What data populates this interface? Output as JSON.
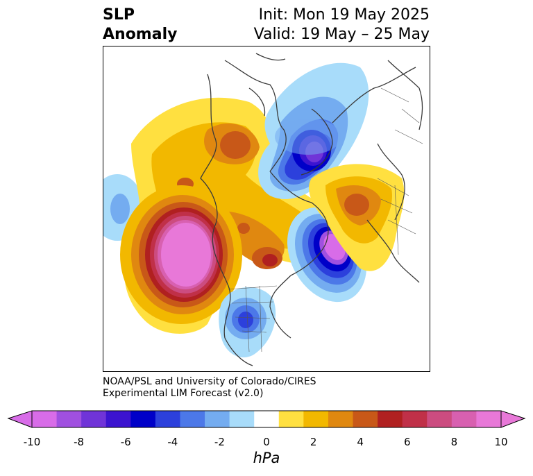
{
  "title": {
    "left_line1": "SLP",
    "left_line2": "Anomaly",
    "init": "Init: Mon 19 May 2025",
    "valid": "Valid: 19 May – 25 May"
  },
  "credit": {
    "line1": "NOAA/PSL and University of Colorado/CIRES",
    "line2": "Experimental LIM Forecast (v2.0)"
  },
  "colorbar": {
    "unit": "hPa",
    "ticks": [
      "-10",
      "-8",
      "-6",
      "-4",
      "-2",
      "0",
      "2",
      "4",
      "6",
      "8",
      "10"
    ],
    "extend": "both",
    "colors": [
      "#d86ce8",
      "#a050e0",
      "#7034d8",
      "#3c14d0",
      "#0000c8",
      "#2c40dc",
      "#4c78e8",
      "#74acf0",
      "#a8dcfa",
      "#ffffff",
      "#ffe040",
      "#f2b800",
      "#e08810",
      "#c85818",
      "#b02020",
      "#c03048",
      "#cc4c80",
      "#d860b0",
      "#e878d8"
    ],
    "left_extend_color": "#d86ce8",
    "right_extend_color": "#e878d8"
  }
}
